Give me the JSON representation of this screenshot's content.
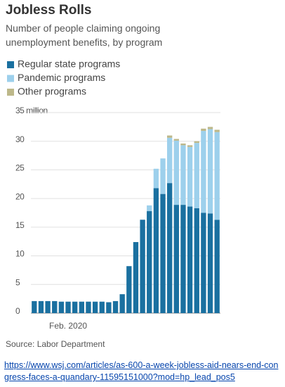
{
  "chart_data": {
    "type": "stacked_bar",
    "title": "Jobless Rolls",
    "subtitle": "Number of people claiming ongoing unemployment benefits, by program",
    "categories": [
      null,
      null,
      null,
      null,
      null,
      "Feb. 2020",
      null,
      null,
      null,
      null,
      null,
      null,
      null,
      null,
      null,
      null,
      null,
      null,
      null,
      null,
      null,
      null,
      null,
      null,
      null,
      null,
      null,
      null
    ],
    "series": [
      {
        "name": "Regular state programs",
        "color": "#1a70a0",
        "values": [
          2.1,
          2.1,
          2.1,
          2.1,
          2.0,
          2.0,
          2.0,
          2.0,
          2.0,
          2.0,
          2.0,
          1.9,
          2.1,
          3.3,
          8.2,
          12.4,
          16.3,
          17.8,
          21.8,
          20.8,
          22.7,
          18.9,
          18.9,
          18.6,
          18.3,
          17.5,
          17.4,
          16.3
        ]
      },
      {
        "name": "Pandemic programs",
        "color": "#9dd0ec",
        "values": [
          0,
          0,
          0,
          0,
          0,
          0,
          0,
          0,
          0,
          0,
          0,
          0,
          0,
          0,
          0,
          0,
          0,
          1.0,
          3.4,
          6.2,
          7.9,
          11.2,
          10.4,
          10.4,
          11.4,
          14.3,
          14.7,
          15.3
        ]
      },
      {
        "name": "Other programs",
        "color": "#bdb88a",
        "values": [
          0,
          0,
          0,
          0,
          0,
          0,
          0,
          0,
          0,
          0,
          0,
          0,
          0,
          0,
          0,
          0,
          0,
          0,
          0,
          0,
          0.4,
          0.3,
          0.3,
          0.3,
          0.3,
          0.4,
          0.4,
          0.4
        ]
      }
    ],
    "ylim": [
      0,
      35
    ],
    "yticks": [
      0,
      5,
      10,
      15,
      20,
      25,
      30,
      {
        "value": 35,
        "label": "35 million"
      }
    ],
    "grid": true,
    "source": "Source: Labor Department"
  },
  "link": "https://www.wsj.com/articles/as-600-a-week-jobless-aid-nears-end-congress-faces-a-quandary-11595151000?mod=hp_lead_pos5"
}
